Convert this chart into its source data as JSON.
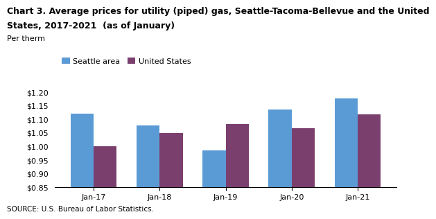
{
  "title_line1": "Chart 3. Average prices for utility (piped) gas, Seattle-Tacoma-Bellevue and the United",
  "title_line2": "States, 2017-2021  (as of January)",
  "ylabel": "Per therm",
  "source": "SOURCE: U.S. Bureau of Labor Statistics.",
  "categories": [
    "Jan-17",
    "Jan-18",
    "Jan-19",
    "Jan-20",
    "Jan-21"
  ],
  "seattle": [
    1.12,
    1.075,
    0.985,
    1.135,
    1.175
  ],
  "us": [
    1.0,
    1.048,
    1.08,
    1.065,
    1.115
  ],
  "seattle_color": "#5b9bd5",
  "us_color": "#7b3f6e",
  "ylim": [
    0.85,
    1.22
  ],
  "yticks": [
    0.85,
    0.9,
    0.95,
    1.0,
    1.05,
    1.1,
    1.15,
    1.2
  ],
  "legend_labels": [
    "Seattle area",
    "United States"
  ],
  "title_fontsize": 9.0,
  "label_fontsize": 8.0,
  "tick_fontsize": 8.0,
  "bar_width": 0.35,
  "background_color": "#ffffff"
}
